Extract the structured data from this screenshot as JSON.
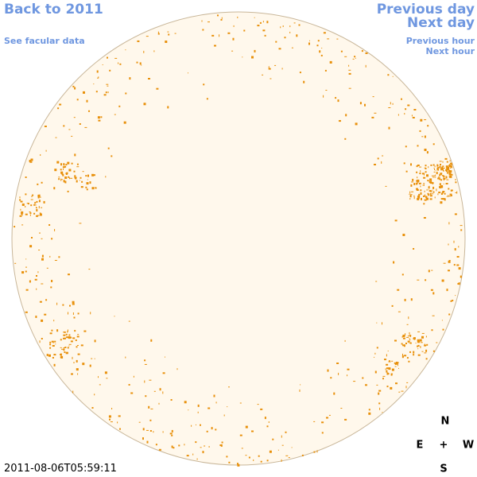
{
  "nav": {
    "back_label": "Back to 2011",
    "facular_label": "See facular data",
    "prev_day_label": "Previous day",
    "next_day_label": "Next day",
    "prev_hour_label": "Previous hour",
    "next_hour_label": "Next hour"
  },
  "timestamp": "2011-08-06T05:59:11",
  "compass": {
    "north": "N",
    "east": "E",
    "center": "+",
    "west": "W",
    "south": "S"
  },
  "colors": {
    "link": "#6f97e0",
    "disk_fill": "#fff8ec",
    "disk_edge": "#c9b79a",
    "facula": "#e8900a"
  }
}
